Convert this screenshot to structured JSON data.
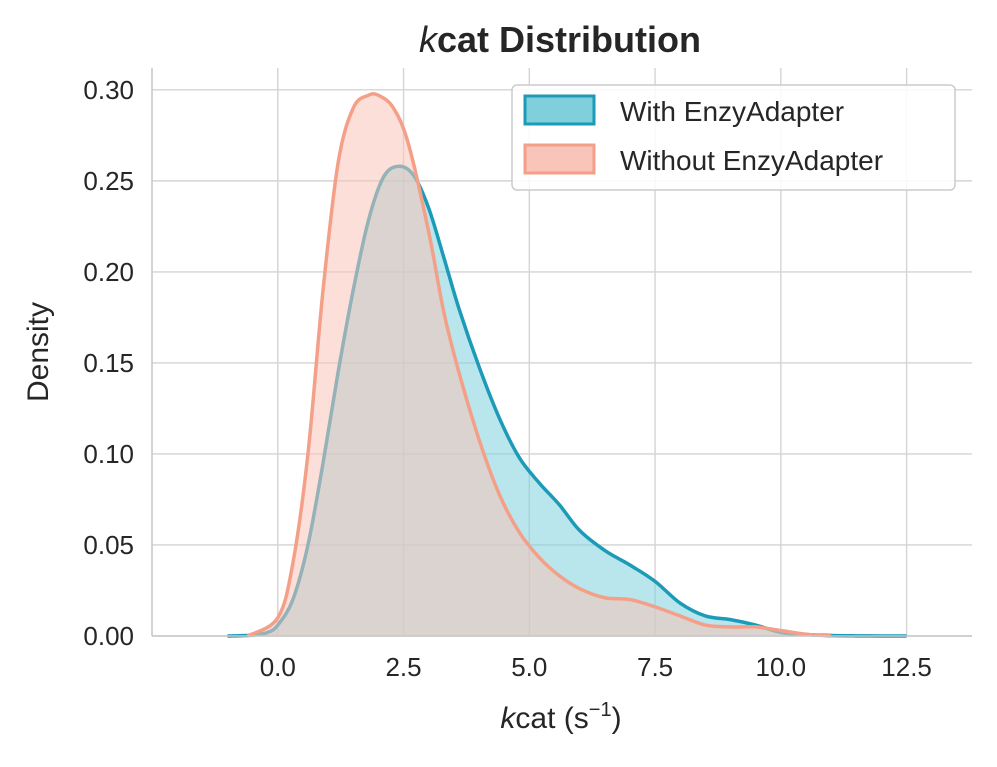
{
  "chart_data": {
    "type": "area",
    "title": {
      "italic_part": "k",
      "rest": "cat Distribution"
    },
    "xlabel": {
      "italic_part": "k",
      "rest": "cat (s",
      "sup": "−1",
      "close": ")"
    },
    "ylabel": "Density",
    "xlim": [
      -2.5,
      13.8
    ],
    "ylim": [
      0,
      0.312
    ],
    "xticks": [
      0.0,
      2.5,
      5.0,
      7.5,
      10.0,
      12.5
    ],
    "xtick_labels": [
      "0.0",
      "2.5",
      "5.0",
      "7.5",
      "10.0",
      "12.5"
    ],
    "yticks": [
      0.0,
      0.05,
      0.1,
      0.15,
      0.2,
      0.25,
      0.3
    ],
    "ytick_labels": [
      "0.00",
      "0.05",
      "0.10",
      "0.15",
      "0.20",
      "0.25",
      "0.30"
    ],
    "grid": true,
    "legend_position": "top-right",
    "series": [
      {
        "name": "With EnzyAdapter",
        "line_color": "#1b9bb7",
        "fill_color": "#7fcfdd",
        "x": [
          -1.0,
          -0.5,
          -0.2,
          0.0,
          0.3,
          0.6,
          0.9,
          1.2,
          1.5,
          1.8,
          2.1,
          2.4,
          2.7,
          3.0,
          3.3,
          3.6,
          4.0,
          4.4,
          4.8,
          5.2,
          5.6,
          6.0,
          6.5,
          7.0,
          7.5,
          8.0,
          8.5,
          9.0,
          9.5,
          10.0,
          10.5,
          11.0,
          11.5,
          12.0,
          12.5
        ],
        "y": [
          0.0,
          0.0005,
          0.002,
          0.006,
          0.02,
          0.05,
          0.095,
          0.145,
          0.19,
          0.228,
          0.252,
          0.258,
          0.253,
          0.235,
          0.208,
          0.18,
          0.148,
          0.12,
          0.098,
          0.084,
          0.072,
          0.058,
          0.047,
          0.039,
          0.03,
          0.018,
          0.011,
          0.009,
          0.006,
          0.002,
          0.0008,
          0.0003,
          0.0001,
          0.0,
          0.0
        ]
      },
      {
        "name": "Without EnzyAdapter",
        "line_color": "#f4a088",
        "fill_color": "#f8c5b8",
        "x": [
          -0.6,
          0.0,
          0.3,
          0.6,
          0.9,
          1.2,
          1.5,
          1.8,
          2.0,
          2.3,
          2.6,
          3.0,
          3.3,
          3.6,
          4.0,
          4.4,
          4.8,
          5.2,
          5.6,
          6.0,
          6.5,
          7.0,
          7.5,
          8.0,
          8.5,
          9.0,
          9.5,
          10.0,
          10.5,
          11.0
        ],
        "y": [
          0.0,
          0.01,
          0.04,
          0.1,
          0.19,
          0.26,
          0.29,
          0.297,
          0.297,
          0.29,
          0.27,
          0.222,
          0.178,
          0.145,
          0.108,
          0.078,
          0.057,
          0.043,
          0.033,
          0.026,
          0.021,
          0.02,
          0.016,
          0.011,
          0.006,
          0.005,
          0.005,
          0.003,
          0.001,
          0.0
        ]
      }
    ]
  }
}
